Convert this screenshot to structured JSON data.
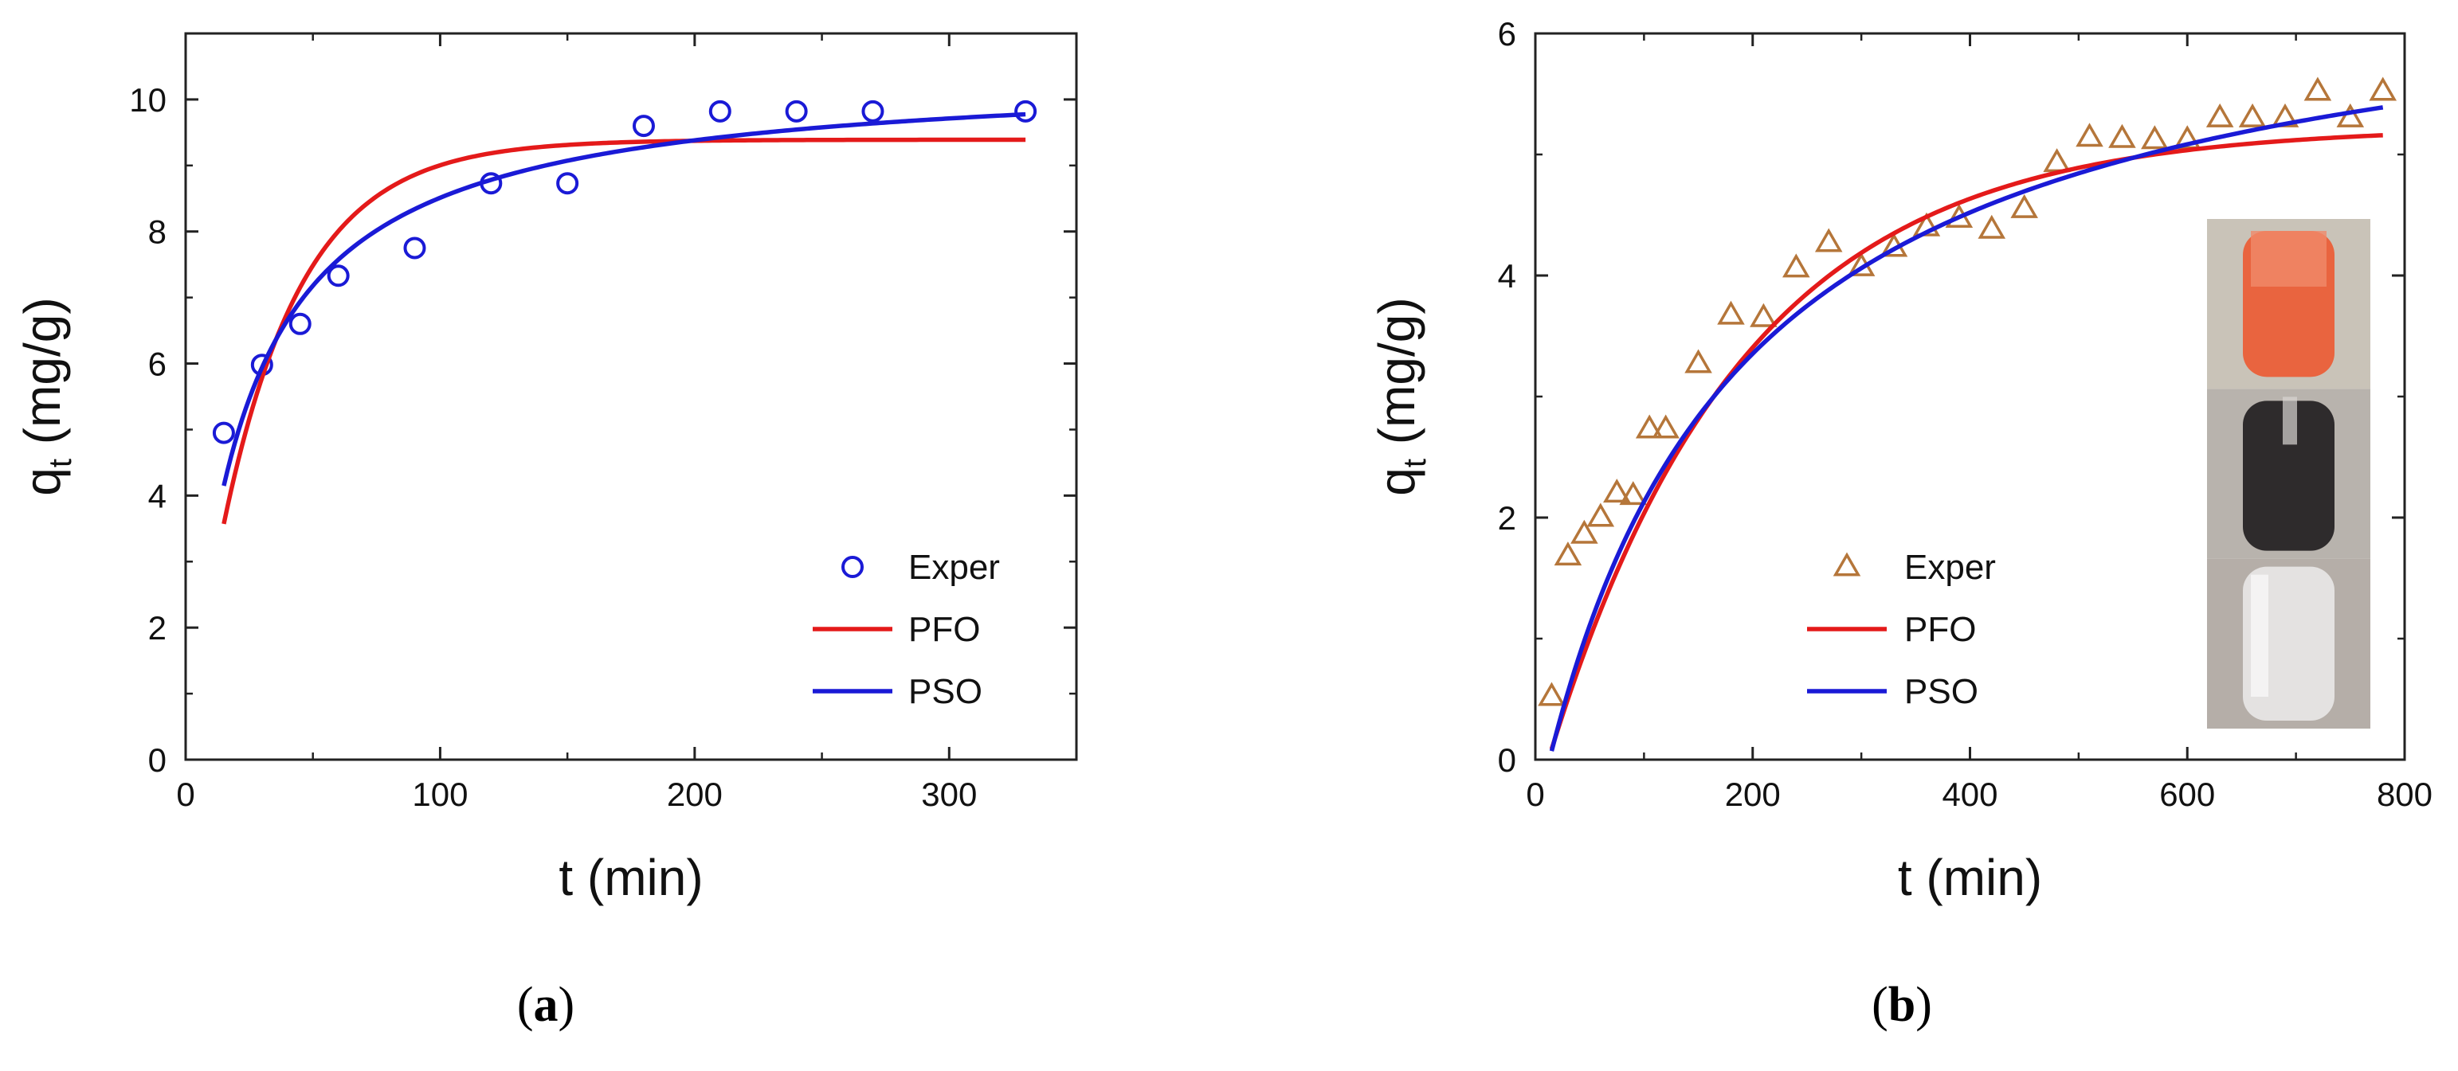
{
  "figure": {
    "panels": [
      "a",
      "b"
    ]
  },
  "chart_data": [
    {
      "type": "scatter",
      "panel_label": "a",
      "caption": {
        "open": "(",
        "letter": "a",
        "close": ")"
      },
      "xlabel": "t (min)",
      "ylabel": {
        "main": "q",
        "sub": "t",
        "unit": " (mg/g)"
      },
      "xlim": [
        0,
        350
      ],
      "ylim": [
        0,
        11
      ],
      "xticks": [
        0,
        100,
        200,
        300
      ],
      "yticks": [
        0,
        2,
        4,
        6,
        8,
        10
      ],
      "legend_position": "bottom-right",
      "series": [
        {
          "name": "Exper",
          "kind": "markers",
          "marker": "circle",
          "color": "#1a1ad6",
          "x": [
            15,
            30,
            45,
            60,
            90,
            120,
            150,
            180,
            210,
            240,
            270,
            330
          ],
          "y": [
            4.95,
            5.98,
            6.6,
            7.33,
            7.75,
            8.73,
            8.73,
            9.6,
            9.82,
            9.82,
            9.82,
            9.82
          ]
        },
        {
          "name": "PFO",
          "kind": "line",
          "color": "#e41a1a",
          "model": "pfo",
          "params": {
            "qe": 9.39,
            "k": 0.0319
          },
          "xrange": [
            15,
            330
          ]
        },
        {
          "name": "PSO",
          "kind": "line",
          "color": "#1a1ad6",
          "model": "pso",
          "params": {
            "qe": 10.45,
            "k": 0.0042
          },
          "xrange": [
            15,
            330
          ]
        }
      ]
    },
    {
      "type": "scatter",
      "panel_label": "b",
      "caption": {
        "open": "(",
        "letter": "b",
        "close": ")"
      },
      "xlabel": "t (min)",
      "ylabel": {
        "main": "q",
        "sub": "t",
        "unit": " (mg/g)"
      },
      "xlim": [
        0,
        800
      ],
      "ylim": [
        0,
        6
      ],
      "xticks": [
        0,
        200,
        400,
        600,
        800
      ],
      "yticks": [
        0,
        2,
        4,
        6
      ],
      "legend_position": "bottom-center",
      "inset": "photo of three vials: orange solution, dark suspension, clear solution",
      "series": [
        {
          "name": "Exper",
          "kind": "markers",
          "marker": "triangle",
          "color": "#b5763a",
          "x": [
            15,
            30,
            45,
            60,
            75,
            90,
            105,
            120,
            150,
            180,
            210,
            240,
            270,
            300,
            330,
            360,
            390,
            420,
            450,
            480,
            510,
            540,
            570,
            600,
            630,
            660,
            690,
            720,
            750,
            780
          ],
          "y": [
            0.52,
            1.68,
            1.86,
            2.0,
            2.2,
            2.18,
            2.73,
            2.73,
            3.27,
            3.67,
            3.65,
            4.06,
            4.27,
            4.07,
            4.23,
            4.4,
            4.47,
            4.38,
            4.55,
            4.93,
            5.14,
            5.13,
            5.12,
            5.12,
            5.3,
            5.3,
            5.3,
            5.52,
            5.3,
            5.52
          ]
        },
        {
          "name": "PFO",
          "kind": "line",
          "color": "#e41a1a",
          "model": "pfo",
          "params": {
            "qe": 5.23,
            "k": 0.0056,
            "t0": 12
          },
          "xrange": [
            15,
            780
          ]
        },
        {
          "name": "PSO",
          "kind": "line",
          "color": "#1a1ad6",
          "model": "pso",
          "params": {
            "qe": 6.7,
            "k": 0.0008,
            "t0": 13
          },
          "xrange": [
            15,
            780
          ]
        }
      ]
    }
  ]
}
